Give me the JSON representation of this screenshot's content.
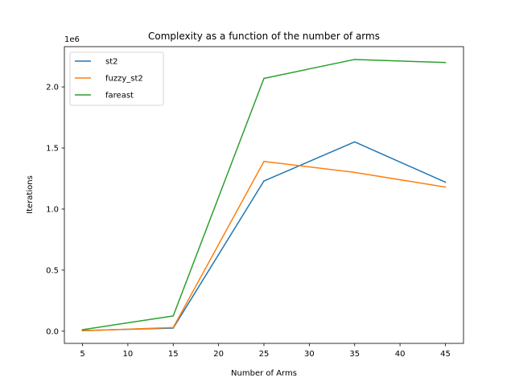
{
  "chart_data": {
    "type": "line",
    "title": "Complexity as a function of the number of arms",
    "xlabel": "Number of Arms",
    "ylabel": "Iterations",
    "y_offset_label": "1e6",
    "x": [
      5,
      15,
      25,
      35,
      45
    ],
    "xticks": [
      5,
      10,
      15,
      20,
      25,
      30,
      35,
      40,
      45
    ],
    "xtick_labels": [
      "5",
      "10",
      "15",
      "20",
      "25",
      "30",
      "35",
      "40",
      "45"
    ],
    "yticks": [
      0,
      500000,
      1000000,
      1500000,
      2000000
    ],
    "ytick_labels": [
      "0.0",
      "0.5",
      "1.0",
      "1.5",
      "2.0"
    ],
    "xlim": [
      3,
      47
    ],
    "ylim": [
      -100000,
      2330000
    ],
    "grid": false,
    "legend_position": "top-left",
    "series": [
      {
        "name": "st2",
        "color": "#1f77b4",
        "values": [
          5000,
          25000,
          1230000,
          1550000,
          1220000
        ]
      },
      {
        "name": "fuzzy_st2",
        "color": "#ff7f0e",
        "values": [
          3000,
          30000,
          1390000,
          1300000,
          1180000
        ]
      },
      {
        "name": "fareast",
        "color": "#2ca02c",
        "values": [
          12000,
          125000,
          2070000,
          2225000,
          2200000
        ]
      }
    ]
  }
}
